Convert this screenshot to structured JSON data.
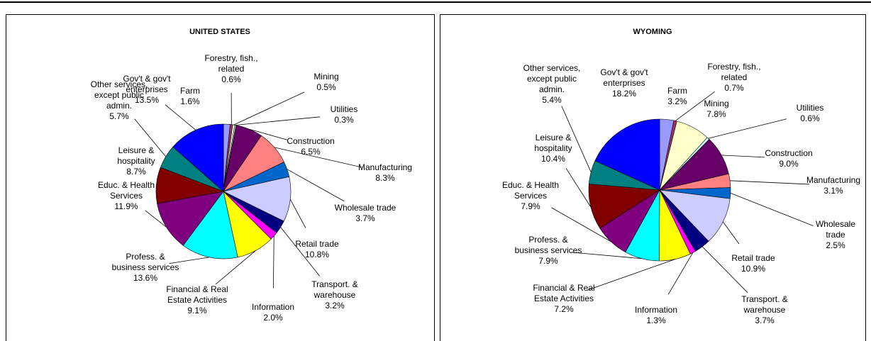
{
  "chart_data": [
    {
      "type": "pie",
      "title": "UNITED STATES",
      "categories": [
        "Farm",
        "Forestry, fish.,\nrelated",
        "Mining",
        "Utilities",
        "Construction",
        "Manufacturing",
        "Wholesale trade",
        "Retail trade",
        "Transport. &\nwarehouse",
        "Information",
        "Financial & Real\nEstate Activities",
        "Profess. &\nbusiness services",
        "Educ. & Health\nServices",
        "Leisure &\nhospitality",
        "Other services,\nexcept public\nadmin.",
        "Gov't & gov't\nenterprises"
      ],
      "values": [
        1.6,
        0.6,
        0.5,
        0.3,
        6.5,
        8.3,
        3.7,
        10.8,
        3.2,
        2.0,
        9.1,
        13.6,
        11.9,
        8.7,
        5.7,
        13.5
      ],
      "value_labels": [
        "1.6%",
        "0.6%",
        "0.5%",
        "0.3%",
        "6.5%",
        "8.3%",
        "3.7%",
        "10.8%",
        "3.2%",
        "2.0%",
        "9.1%",
        "13.6%",
        "11.9%",
        "8.7%",
        "5.7%",
        "13.5%"
      ],
      "colors": [
        "#9999FF",
        "#993366",
        "#FFFFCC",
        "#CCFFFF",
        "#660066",
        "#FF8080",
        "#0066CC",
        "#CCCCFF",
        "#000080",
        "#FF00FF",
        "#FFFF00",
        "#00FFFF",
        "#800080",
        "#800000",
        "#008080",
        "#0000FF"
      ]
    },
    {
      "type": "pie",
      "title": "WYOMING",
      "categories": [
        "Farm",
        "Forestry, fish.,\nrelated",
        "Mining",
        "Utilities",
        "Construction",
        "Manufacturing",
        "Wholesale\ntrade",
        "Retail trade",
        "Transport. &\nwarehouse",
        "Information",
        "Financial & Real\nEstate Activities",
        "Profess. &\nbusiness services",
        "Educ. & Health\nServices",
        "Leisure &\nhospitality",
        "Other services,\nexcept public\nadmin.",
        "Gov't & gov't\nenterprises"
      ],
      "values": [
        3.2,
        0.7,
        7.8,
        0.6,
        9.0,
        3.1,
        2.5,
        10.9,
        3.7,
        1.3,
        7.2,
        7.9,
        7.9,
        10.4,
        5.4,
        18.2
      ],
      "value_labels": [
        "3.2%",
        "0.7%",
        "7.8%",
        "0.6%",
        "9.0%",
        "3.1%",
        "2.5%",
        "10.9%",
        "3.7%",
        "1.3%",
        "7.2%",
        "7.9%",
        "7.9%",
        "10.4%",
        "5.4%",
        "18.2%"
      ],
      "colors": [
        "#9999FF",
        "#993366",
        "#FFFFCC",
        "#CCFFFF",
        "#660066",
        "#FF8080",
        "#0066CC",
        "#CCCCFF",
        "#000080",
        "#FF00FF",
        "#FFFF00",
        "#00FFFF",
        "#800080",
        "#800000",
        "#008080",
        "#0000FF"
      ]
    }
  ]
}
